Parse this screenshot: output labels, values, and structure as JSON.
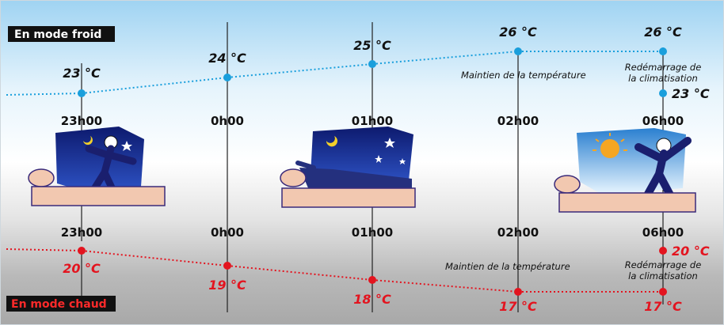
{
  "cold_mode": {
    "label": "En mode froid",
    "color": "#1a9fdc",
    "points": [
      {
        "time": "23h00",
        "temp": "23 °C"
      },
      {
        "time": "0h00",
        "temp": "24 °C"
      },
      {
        "time": "01h00",
        "temp": "25 °C"
      },
      {
        "time": "02h00",
        "temp": "26 °C"
      },
      {
        "time": "06h00",
        "temp": "26 °C"
      }
    ],
    "restart_temp": "23 °C",
    "maintain_note": "Maintien de la température",
    "restart_note_1": "Redémarrage de",
    "restart_note_2": "la climatisation"
  },
  "hot_mode": {
    "label": "En mode chaud",
    "color": "#e3141f",
    "points": [
      {
        "time": "23h00",
        "temp": "20 °C"
      },
      {
        "time": "0h00",
        "temp": "19 °C"
      },
      {
        "time": "01h00",
        "temp": "18 °C"
      },
      {
        "time": "02h00",
        "temp": "17 °C"
      },
      {
        "time": "06h00",
        "temp": "17 °C"
      }
    ],
    "restart_temp": "20 °C",
    "maintain_note": "Maintien de la température",
    "restart_note_1": "Redémarrage de",
    "restart_note_2": "la climatisation"
  },
  "times": [
    "23h00",
    "0h00",
    "01h00",
    "02h00",
    "06h00"
  ],
  "illustrations": [
    "person-going-to-bed-icon",
    "person-sleeping-icon",
    "person-waking-icon"
  ],
  "colors": {
    "night_sky": "#1b2a8f",
    "bed": "#f2c8b0",
    "bed_outline": "#3a2a7a",
    "sun": "#f5a623",
    "mode_tag_bg": "#111111"
  }
}
